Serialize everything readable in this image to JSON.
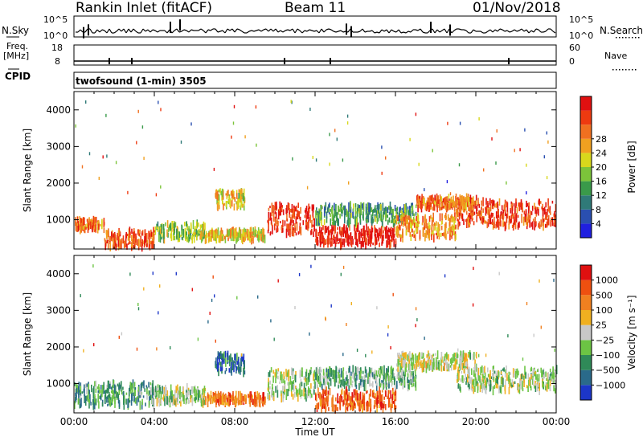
{
  "header": {
    "station": "Rankin Inlet (fitACF)",
    "beam": "Beam 11",
    "date": "01/Nov/2018"
  },
  "status_panels": {
    "nsky_label": "N.Sky",
    "nsearch_label": "N.Search",
    "noise_tick_hi": "10^5",
    "noise_tick_lo": "10^0",
    "freq_label": "Freq.",
    "freq_unit": "[MHz]",
    "freq_tick_hi": "18",
    "freq_tick_lo": "8",
    "nave_label": "Nave",
    "nave_tick_hi": "60",
    "nave_tick_lo": "0",
    "cpid_label": "CPID",
    "cpid_value": "twofsound (1-min) 3505"
  },
  "chart_data": [
    {
      "type": "heatmap",
      "panel": "power",
      "ylabel": "Slant Range [km]",
      "yticks": [
        "1000",
        "2000",
        "3000",
        "4000"
      ],
      "ylim": [
        200,
        4500
      ],
      "xlim_hours": [
        0,
        24
      ],
      "colorbar": {
        "label": "Power [dB]",
        "ticks": [
          "4",
          "8",
          "12",
          "16",
          "20",
          "24",
          "28"
        ],
        "colors": [
          "#2020e0",
          "#2a4fb0",
          "#2f7a78",
          "#3a9a4a",
          "#7cc43a",
          "#d8d81c",
          "#f0a020",
          "#f07020",
          "#ee3a10",
          "#e01010"
        ]
      },
      "bands": [
        {
          "t": [
            0,
            1.5
          ],
          "r": [
            700,
            1000
          ],
          "level": 0.75
        },
        {
          "t": [
            1.5,
            4
          ],
          "r": [
            250,
            700
          ],
          "level": 0.8
        },
        {
          "t": [
            4,
            6.5
          ],
          "r": [
            450,
            900
          ],
          "level": 0.45
        },
        {
          "t": [
            6.5,
            9.5
          ],
          "r": [
            450,
            700
          ],
          "level": 0.6
        },
        {
          "t": [
            7,
            8.5
          ],
          "r": [
            1300,
            1800
          ],
          "level": 0.55
        },
        {
          "t": [
            9.6,
            12
          ],
          "r": [
            600,
            1400
          ],
          "level": 0.9
        },
        {
          "t": [
            12,
            16
          ],
          "r": [
            300,
            800
          ],
          "level": 0.95
        },
        {
          "t": [
            12,
            17
          ],
          "r": [
            900,
            1400
          ],
          "level": 0.35
        },
        {
          "t": [
            16,
            19
          ],
          "r": [
            500,
            1100
          ],
          "level": 0.7
        },
        {
          "t": [
            19,
            24
          ],
          "r": [
            800,
            1500
          ],
          "level": 0.85
        },
        {
          "t": [
            17,
            20
          ],
          "r": [
            1300,
            1600
          ],
          "level": 0.75
        }
      ]
    },
    {
      "type": "heatmap",
      "panel": "velocity",
      "ylabel": "Slant Range [km]",
      "yticks": [
        "1000",
        "2000",
        "3000",
        "4000"
      ],
      "ylim": [
        200,
        4500
      ],
      "xlabel": "Time UT",
      "xticks": [
        "00:00",
        "04:00",
        "08:00",
        "12:00",
        "16:00",
        "20:00",
        "00:00"
      ],
      "xlim_hours": [
        0,
        24
      ],
      "colorbar": {
        "label": "Velocity [m s⁻¹]",
        "ticks": [
          "1000",
          "500",
          "100",
          "25",
          "−25",
          "−100",
          "−500",
          "−1000"
        ],
        "colors": [
          "#1c36c8",
          "#2a6a8a",
          "#2f8a58",
          "#6cc444",
          "#c8c8c8",
          "#f0b020",
          "#f08020",
          "#ee5010",
          "#e01010"
        ]
      },
      "bands": [
        {
          "t": [
            0,
            4
          ],
          "r": [
            400,
            1000
          ],
          "level": 0.3
        },
        {
          "t": [
            4,
            6.5
          ],
          "r": [
            450,
            900
          ],
          "level": 0.45
        },
        {
          "t": [
            6.5,
            9.5
          ],
          "r": [
            450,
            700
          ],
          "level": 0.75
        },
        {
          "t": [
            7,
            8.5
          ],
          "r": [
            1300,
            1800
          ],
          "level": 0.2
        },
        {
          "t": [
            9.6,
            12
          ],
          "r": [
            600,
            1400
          ],
          "level": 0.45
        },
        {
          "t": [
            12,
            16
          ],
          "r": [
            300,
            800
          ],
          "level": 0.8
        },
        {
          "t": [
            12,
            17
          ],
          "r": [
            900,
            1400
          ],
          "level": 0.35
        },
        {
          "t": [
            16,
            20
          ],
          "r": [
            1400,
            1800
          ],
          "level": 0.5
        },
        {
          "t": [
            19,
            24
          ],
          "r": [
            800,
            1400
          ],
          "level": 0.45
        }
      ]
    }
  ]
}
